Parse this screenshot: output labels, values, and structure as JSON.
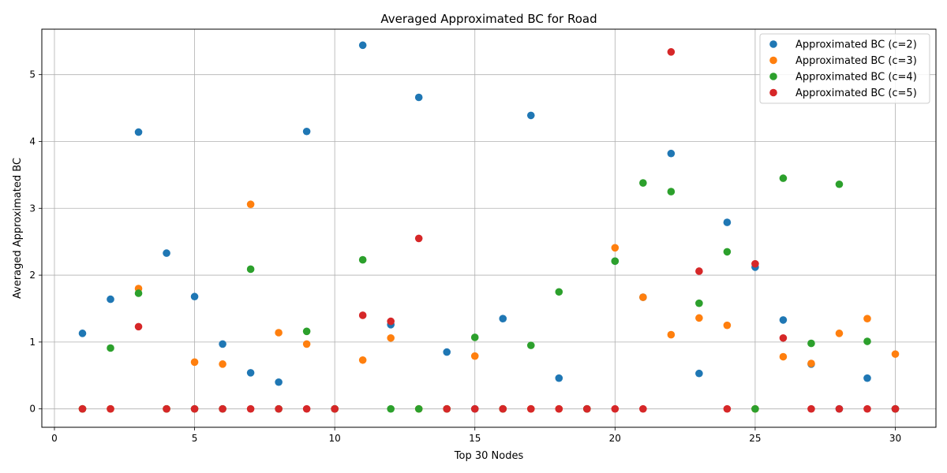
{
  "chart_data": {
    "type": "scatter",
    "title": "Averaged Approximated BC for Road",
    "xlabel": "Top 30 Nodes",
    "ylabel": "Averaged Approximated BC",
    "xlim": [
      -0.45,
      31.45
    ],
    "ylim": [
      -0.275,
      5.68
    ],
    "xticks": [
      0,
      5,
      10,
      15,
      20,
      25,
      30
    ],
    "yticks": [
      0,
      1,
      2,
      3,
      4,
      5
    ],
    "grid": true,
    "legend_position": "top-right",
    "series": [
      {
        "name": "Approximated BC (c=2)",
        "color": "#1f77b4",
        "x": [
          1,
          2,
          3,
          4,
          5,
          6,
          7,
          8,
          9,
          10,
          11,
          12,
          13,
          14,
          15,
          16,
          17,
          18,
          19,
          20,
          21,
          22,
          23,
          24,
          25,
          26,
          27,
          28,
          29,
          30
        ],
        "y": [
          1.13,
          1.64,
          4.14,
          2.33,
          1.68,
          0.97,
          0.54,
          0.4,
          4.15,
          0.0,
          5.44,
          1.26,
          4.66,
          0.85,
          0.0,
          1.35,
          4.39,
          0.46,
          0.0,
          2.21,
          1.67,
          3.82,
          0.53,
          2.79,
          2.12,
          1.33,
          0.67,
          0.0,
          0.46,
          0.0
        ]
      },
      {
        "name": "Approximated BC (c=3)",
        "color": "#ff7f0e",
        "x": [
          1,
          2,
          3,
          4,
          5,
          6,
          7,
          8,
          9,
          10,
          11,
          12,
          13,
          14,
          15,
          16,
          17,
          18,
          19,
          20,
          21,
          22,
          23,
          24,
          25,
          26,
          27,
          28,
          29,
          30
        ],
        "y": [
          0.0,
          0.0,
          1.8,
          0.0,
          0.7,
          0.67,
          3.06,
          1.14,
          0.97,
          0.0,
          0.73,
          1.06,
          0.0,
          0.0,
          0.79,
          0.0,
          0.0,
          0.0,
          0.0,
          2.41,
          1.67,
          1.11,
          1.36,
          1.25,
          0.0,
          0.78,
          0.68,
          1.13,
          1.35,
          0.82
        ]
      },
      {
        "name": "Approximated BC (c=4)",
        "color": "#2ca02c",
        "x": [
          1,
          2,
          3,
          4,
          5,
          6,
          7,
          8,
          9,
          10,
          11,
          12,
          13,
          14,
          15,
          16,
          17,
          18,
          19,
          20,
          21,
          22,
          23,
          24,
          25,
          26,
          27,
          28,
          29,
          30
        ],
        "y": [
          0.0,
          0.91,
          1.73,
          0.0,
          0.0,
          0.0,
          2.09,
          0.0,
          1.16,
          0.0,
          2.23,
          0.0,
          0.0,
          0.0,
          1.07,
          0.0,
          0.95,
          1.75,
          0.0,
          2.21,
          3.38,
          3.25,
          1.58,
          2.35,
          0.0,
          3.45,
          0.98,
          3.36,
          1.01,
          0.0
        ]
      },
      {
        "name": "Approximated BC (c=5)",
        "color": "#d62728",
        "x": [
          1,
          2,
          3,
          4,
          5,
          6,
          7,
          8,
          9,
          10,
          11,
          12,
          13,
          14,
          15,
          16,
          17,
          18,
          19,
          20,
          21,
          22,
          23,
          24,
          25,
          26,
          27,
          28,
          29,
          30
        ],
        "y": [
          0.0,
          0.0,
          1.23,
          0.0,
          0.0,
          0.0,
          0.0,
          0.0,
          0.0,
          0.0,
          1.4,
          1.31,
          2.55,
          0.0,
          0.0,
          0.0,
          0.0,
          0.0,
          0.0,
          0.0,
          0.0,
          5.34,
          2.06,
          0.0,
          2.17,
          1.06,
          0.0,
          0.0,
          0.0,
          0.0
        ]
      }
    ]
  }
}
